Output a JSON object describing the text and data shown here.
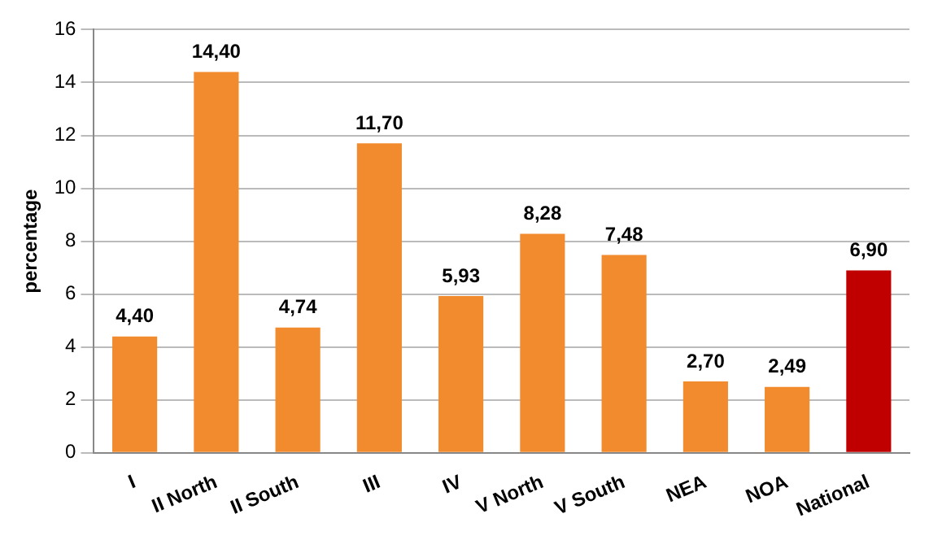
{
  "chart_data": {
    "type": "bar",
    "ylabel": "percentage",
    "categories": [
      "I",
      "II North",
      "II South",
      "III",
      "IV",
      "V North",
      "V South",
      "NEA",
      "NOA",
      "National"
    ],
    "values": [
      4.4,
      14.4,
      4.74,
      11.7,
      5.93,
      8.28,
      7.48,
      2.7,
      2.49,
      6.9
    ],
    "value_labels": [
      "4,40",
      "14,40",
      "4,74",
      "11,70",
      "5,93",
      "8,28",
      "7,48",
      "2,70",
      "2,49",
      "6,90"
    ],
    "colors": [
      "#f28a2e",
      "#f28a2e",
      "#f28a2e",
      "#f28a2e",
      "#f28a2e",
      "#f28a2e",
      "#f28a2e",
      "#f28a2e",
      "#f28a2e",
      "#c00000"
    ],
    "ylim": [
      0,
      16
    ],
    "yticks": [
      0,
      2,
      4,
      6,
      8,
      10,
      12,
      14,
      16
    ],
    "grid": "y",
    "legend": false
  }
}
